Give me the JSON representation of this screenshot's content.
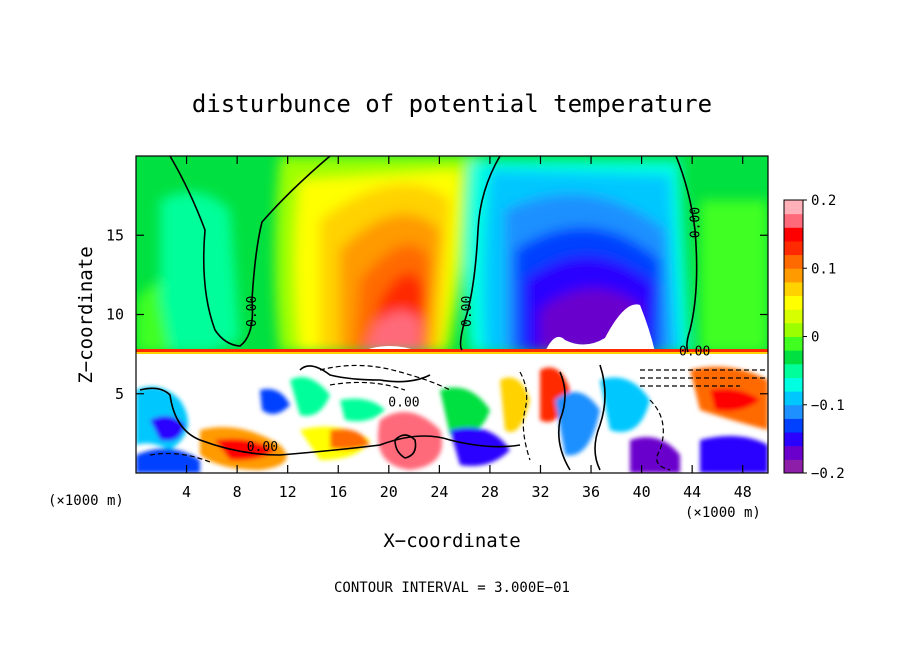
{
  "chart_data": {
    "type": "heatmap",
    "title": "disturbunce of potential temperature",
    "xlabel": "X−coordinate",
    "ylabel": "Z−coordinate",
    "x_unit_label": "(×1000 m)",
    "x_unit_label_right": "(×1000 m)",
    "footer": "CONTOUR INTERVAL = 3.000E−01",
    "xlim": [
      0,
      50
    ],
    "ylim": [
      0,
      20
    ],
    "x_ticks": [
      4,
      8,
      12,
      16,
      20,
      24,
      28,
      32,
      36,
      40,
      44,
      48
    ],
    "x_tick_labels": [
      "4",
      "8",
      "12",
      "16",
      "20",
      "24",
      "28",
      "32",
      "36",
      "40",
      "44",
      "48"
    ],
    "y_ticks": [
      5,
      10,
      15
    ],
    "y_tick_labels": [
      "5",
      "10",
      "15"
    ],
    "colorbar": {
      "min": -0.2,
      "max": 0.2,
      "tick_values": [
        0.2,
        0.1,
        0,
        -0.1,
        -0.2
      ],
      "tick_labels": [
        "0.2",
        "0.1",
        "0",
        "−0.1",
        "−0.2"
      ],
      "colors": [
        "#8c1ea8",
        "#6b00cc",
        "#2a00ff",
        "#0040ff",
        "#1e90ff",
        "#00c8ff",
        "#00ffe0",
        "#00ff9a",
        "#00e040",
        "#40ff20",
        "#9cff00",
        "#d8ff00",
        "#ffff00",
        "#ffd200",
        "#ff9a00",
        "#ff6a00",
        "#ff2a00",
        "#ff0000",
        "#ff6a7a",
        "#ffb0b8"
      ]
    },
    "contour_labels": [
      {
        "text": "0.00",
        "x": 9.5,
        "z": 10.2
      },
      {
        "text": "0.00",
        "x": 26.5,
        "z": 10.2
      },
      {
        "text": "0.00",
        "x": 44.6,
        "z": 15.8
      },
      {
        "text": "0.00",
        "x": 21.2,
        "z": 4.2
      },
      {
        "text": "0.00",
        "x": 10.0,
        "z": 1.4
      },
      {
        "text": "0.00",
        "x": 44.2,
        "z": 7.4
      }
    ]
  }
}
